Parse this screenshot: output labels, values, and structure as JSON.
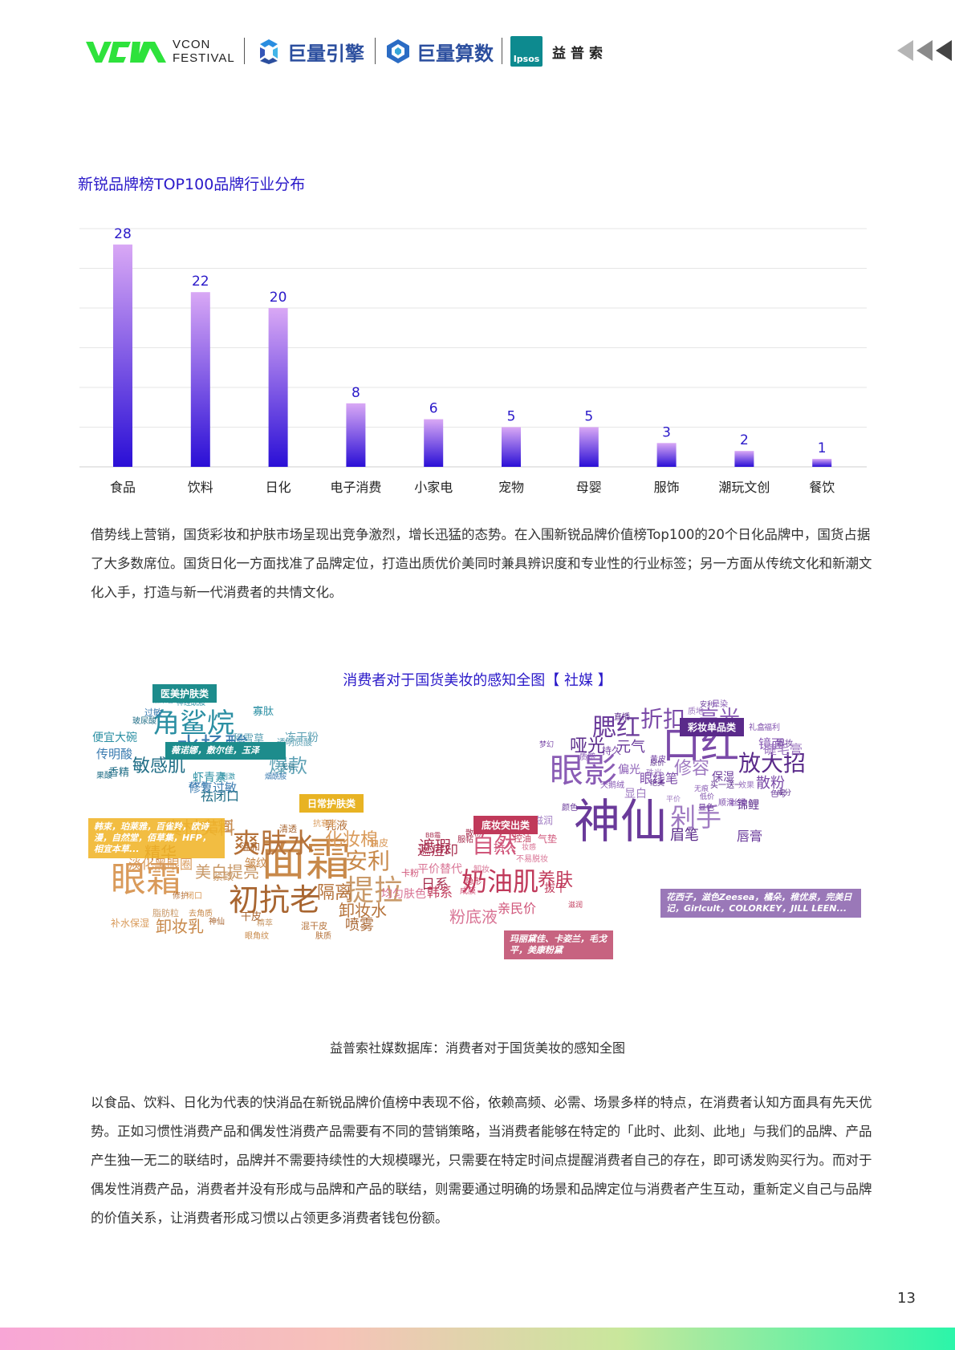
{
  "header": {
    "vcon_line1": "VCON",
    "vcon_line2": "FESTIVAL",
    "brand1": "巨量引擎",
    "brand2": "巨量算数",
    "ipsos_label": "Ipsos",
    "ipsos_cn": "益普索"
  },
  "colors": {
    "title_blue": "#2a19c9",
    "bar_top": "#d9a8f5",
    "bar_bottom": "#2a0fd6",
    "label_blue": "#2a19c9",
    "cat_medical": "#1d8c8c",
    "cat_daily": "#e8b323",
    "cat_base": "#c0395a",
    "cat_makeup": "#5a2a8a"
  },
  "chart_title": "新锐品牌榜TOP100品牌行业分布",
  "chart_data": {
    "type": "bar",
    "title": "新锐品牌榜TOP100品牌行业分布",
    "categories": [
      "食品",
      "饮料",
      "日化",
      "电子消费",
      "小家电",
      "宠物",
      "母婴",
      "服饰",
      "潮玩文创",
      "餐饮"
    ],
    "values": [
      28,
      22,
      20,
      8,
      6,
      5,
      5,
      3,
      2,
      1
    ],
    "ylim": [
      0,
      30
    ],
    "grid": true,
    "xlabel": "",
    "ylabel": ""
  },
  "para1": "借势线上营销，国货彩妆和护肤市场呈现出竞争激烈，增长迅猛的态势。在入围新锐品牌价值榜Top100的20个日化品牌中，国货占据了大多数席位。国货日化一方面找准了品牌定位，打造出质优价美同时兼具辨识度和专业性的行业标签；另一方面从传统文化和新潮文化入手，打造与新一代消费者的共情文化。",
  "cloud": {
    "title": "消费者对于国货美妆的感知全图【 社媒 】",
    "categories": [
      {
        "label": "医美护肤类",
        "note": "薇诺娜，敷尔佳，玉泽"
      },
      {
        "label": "日常护肤类",
        "note": "韩束，珀莱雅，百雀羚，欧诗漫，自然堂，佰草集，HFP，相宜本草..."
      },
      {
        "label": "底妆突出类",
        "note": "玛丽黛佳、卡姿兰，毛戈平，美康粉黛"
      },
      {
        "label": "彩妆单品类",
        "note": "花西子，滋色Zeesea，橘朵，稚优泉，完美日记，Girlcult，COLORKEY，JILL LEEN..."
      }
    ],
    "words_medical": [
      "角鲨烷",
      "水杨酸",
      "敏感肌",
      "爆款",
      "便宜大碗",
      "传明酸",
      "香精",
      "积雪草",
      "虾青素",
      "修复过敏",
      "祛闭口",
      "冻干粉",
      "寡肽",
      "过敏",
      "玻尿酸",
      "熊果苷",
      "神经酰胺",
      "杏仁酸",
      "果酸",
      "透明质酸",
      "刺激",
      "烟酰胺",
      "无硅"
    ],
    "words_daily": [
      "面霜",
      "爽肤水",
      "眼霜",
      "初抗老",
      "提拉",
      "安利",
      "隔离",
      "化妆棉",
      "精华",
      "美白提亮",
      "卸妆乳",
      "卸妆水",
      "淡化黑眼圈",
      "喷雾",
      "真材实料",
      "洁面",
      "乳液",
      "油皮",
      "温和",
      "紧致",
      "皱纹",
      "混干皮",
      "补水保湿",
      "干皮",
      "脂肪粒",
      "去角质",
      "修护",
      "闭口",
      "神仙",
      "精萃",
      "眼角纹",
      "肤质",
      "抗衰老",
      "清透"
    ],
    "words_base": [
      "奶油肌",
      "自然",
      "遮瑕",
      "粉底液",
      "养肤",
      "持久",
      "日系",
      "平价替代",
      "韩系",
      "亲民价",
      "遮痘印",
      "均匀肤色",
      "控油",
      "气垫",
      "服帖",
      "不易脱妆",
      "拔干",
      "卡粉",
      "散粉",
      "卸妆",
      "隐形",
      "成膜",
      "BB霜",
      "妆感",
      "滋润"
    ],
    "words_makeup": [
      "神仙",
      "口红",
      "眼影",
      "剁手",
      "放大招",
      "腮红",
      "折扣",
      "高光",
      "修容",
      "眉笔",
      "唇膏",
      "散粉",
      "镜面",
      "睫毛膏",
      "哑光",
      "元气",
      "眼线笔",
      "偏光",
      "显白",
      "锦鲤",
      "保湿",
      "持久",
      "晕染",
      "质地",
      "直播",
      "颜色",
      "黄皮",
      "天鹅绒",
      "珠光",
      "买一送一",
      "色号",
      "礼盒",
      "福利",
      "滋润",
      "原价",
      "眼妆",
      "梦幻",
      "质感",
      "效果",
      "成分",
      "安利",
      "低价",
      "无痕",
      "平价",
      "绝美",
      "显色",
      "顺滑",
      "丝滑"
    ]
  },
  "caption": "益普索社媒数据库：消费者对于国货美妆的感知全图",
  "para2": "以食品、饮料、日化为代表的快消品在新锐品牌价值榜中表现不俗，依赖高频、必需、场景多样的特点，在消费者认知方面具有先天优势。正如习惯性消费产品和偶发性消费产品需要有不同的营销策略，当消费者能够在特定的「此时、此刻、此地」与我们的品牌、产品产生独一无二的联结时，品牌并不需要持续性的大规模曝光，只需要在特定时间点提醒消费者自己的存在，即可诱发购买行为。而对于偶发性消费产品，消费者并没有形成与品牌和产品的联结，则需要通过明确的场景和品牌定位与消费者产生互动，重新定义自己与品牌的价值关系，让消费者形成习惯以占领更多消费者钱包份额。",
  "page_number": "13"
}
